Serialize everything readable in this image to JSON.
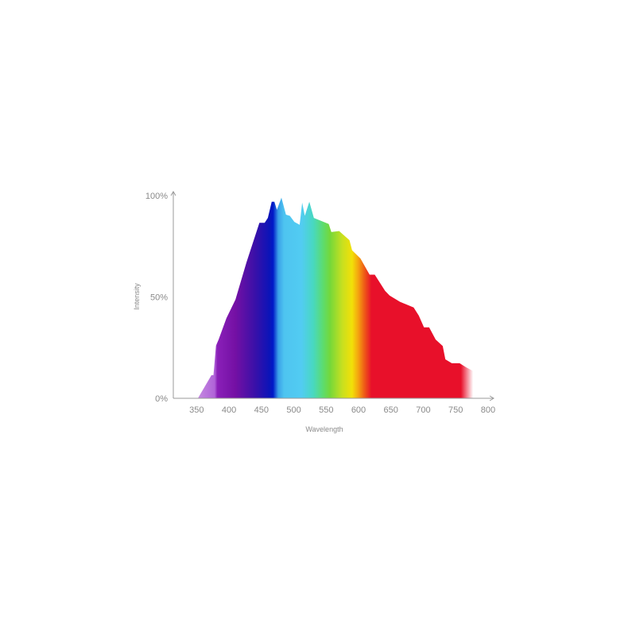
{
  "chart_data": {
    "type": "area",
    "xlabel": "Wavelength",
    "ylabel": "Intensity",
    "xlim": [
      320,
      805
    ],
    "ylim": [
      0,
      100
    ],
    "x_ticks": [
      "350",
      "400",
      "450",
      "500",
      "550",
      "600",
      "650",
      "700",
      "750",
      "800"
    ],
    "y_ticks": [
      "0%",
      "50%",
      "100%"
    ],
    "grid": false,
    "fill": "visible-spectrum gradient (violet to red)",
    "series": [
      {
        "x": [
          352,
          373,
          376,
          380,
          384,
          396,
          410,
          427,
          447,
          455,
          460,
          466,
          470,
          474,
          481,
          488,
          494,
          501,
          509,
          513,
          517,
          524,
          531,
          554,
          558,
          570,
          586,
          590,
          603,
          617,
          625,
          641,
          648,
          664,
          685,
          693,
          701,
          709,
          719,
          730,
          734,
          744,
          756,
          766,
          777
        ],
        "y": [
          0,
          11.4,
          11.4,
          26,
          29,
          39.5,
          48.7,
          67,
          86.6,
          86.6,
          89,
          97,
          97,
          93,
          99,
          90.6,
          90,
          87,
          85.6,
          96.5,
          90,
          97,
          89,
          86,
          82,
          82.5,
          78,
          73,
          69,
          61,
          61,
          53,
          50.7,
          47.6,
          44.8,
          40.8,
          35,
          35,
          29,
          25.8,
          19.2,
          17.3,
          17.3,
          15.3,
          13.4
        ]
      }
    ],
    "colors": {
      "axis": "#9a9a9a",
      "text": "#8a8a8a"
    }
  }
}
